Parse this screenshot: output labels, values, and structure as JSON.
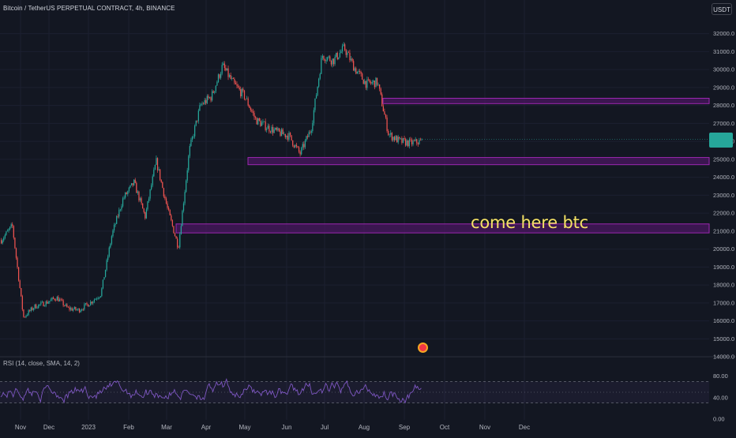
{
  "header": {
    "title": "Bitcoin / TetherUS PERPETUAL CONTRACT, 4h, BINANCE",
    "currency": "USDT"
  },
  "annotation": "come here btc",
  "rsi": {
    "label": "RSI (14, close, SMA, 14, 2)",
    "ticks": [
      "80.00",
      "40.00",
      "0.00"
    ]
  },
  "colors": {
    "background": "#131722",
    "up": "#26a69a",
    "down": "#ef5350",
    "zone_border": "#9c27b0",
    "zone_fill": "#4a1760",
    "rsi_line": "#7e57c2",
    "annotation": "#f5e264"
  },
  "chart_data": {
    "type": "candlestick",
    "symbol": "Bitcoin / TetherUS PERPETUAL CONTRACT",
    "interval": "4h",
    "exchange": "BINANCE",
    "ylim": [
      13500,
      32600
    ],
    "y_ticks": [
      "32000.0",
      "31000.0",
      "30000.0",
      "29000.0",
      "28000.0",
      "27000.0",
      "26000.0",
      "25000.0",
      "24000.0",
      "23000.0",
      "22000.0",
      "21000.0",
      "20000.0",
      "19000.0",
      "18000.0",
      "17000.0",
      "16000.0",
      "15000.0",
      "14000.0"
    ],
    "x_ticks": [
      "Nov",
      "Dec",
      "2023",
      "Feb",
      "Mar",
      "Apr",
      "May",
      "Jun",
      "Jul",
      "Aug",
      "Sep",
      "Oct",
      "Nov",
      "Dec"
    ],
    "price_path": [
      [
        "Nov",
        20500
      ],
      [
        "Nov",
        21300
      ],
      [
        "Nov",
        16200
      ],
      [
        "Nov",
        16800
      ],
      [
        "Dec",
        17000
      ],
      [
        "Dec",
        17300
      ],
      [
        "Dec",
        16700
      ],
      [
        "2023",
        16600
      ],
      [
        "2023",
        17000
      ],
      [
        "2023",
        17500
      ],
      [
        "2023",
        20800
      ],
      [
        "Feb",
        22800
      ],
      [
        "Feb",
        23700
      ],
      [
        "Feb",
        21800
      ],
      [
        "Feb",
        24900
      ],
      [
        "Mar",
        22300
      ],
      [
        "Mar",
        20100
      ],
      [
        "Mar",
        25500
      ],
      [
        "Mar",
        28000
      ],
      [
        "Apr",
        28500
      ],
      [
        "Apr",
        30200
      ],
      [
        "Apr",
        29200
      ],
      [
        "May",
        28500
      ],
      [
        "May",
        27200
      ],
      [
        "May",
        26800
      ],
      [
        "Jun",
        26500
      ],
      [
        "Jun",
        26300
      ],
      [
        "Jun",
        25300
      ],
      [
        "Jun",
        26700
      ],
      [
        "Jul",
        30800
      ],
      [
        "Jul",
        30500
      ],
      [
        "Jul",
        31200
      ],
      [
        "Jul",
        30000
      ],
      [
        "Aug",
        29200
      ],
      [
        "Aug",
        29300
      ],
      [
        "Aug",
        26400
      ],
      [
        "Aug",
        26000
      ],
      [
        "Sep",
        25900
      ],
      [
        "Sep",
        26000
      ]
    ],
    "zones": [
      {
        "low": 28100,
        "high": 28400
      },
      {
        "low": 24700,
        "high": 25100
      },
      {
        "low": 20900,
        "high": 21400
      }
    ],
    "annotation": "come here btc",
    "rsi": {
      "params": "RSI (14, close, SMA, 14, 2)",
      "upper_band": 70,
      "mid": 50,
      "lower_band": 30,
      "ylim": [
        0,
        100
      ]
    }
  }
}
